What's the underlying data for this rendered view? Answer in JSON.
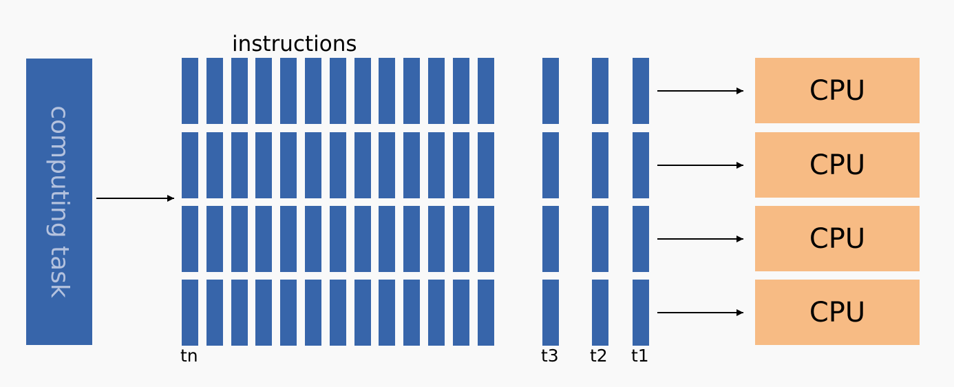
{
  "task": {
    "label": "computing task"
  },
  "instructions": {
    "title": "instructions"
  },
  "time_labels": {
    "tn": "tn",
    "t3": "t3",
    "t2": "t2",
    "t1": "t1"
  },
  "cpus": [
    {
      "label": "CPU"
    },
    {
      "label": "CPU"
    },
    {
      "label": "CPU"
    },
    {
      "label": "CPU"
    }
  ],
  "colors": {
    "instruction_blue": "#3765aa",
    "cpu_orange": "#f7bb84",
    "task_label": "#b4c2de"
  }
}
